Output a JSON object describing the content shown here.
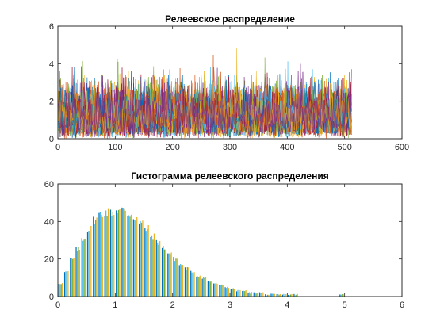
{
  "colors": [
    "#0072BD",
    "#D95319",
    "#EDB120",
    "#7E2F8E",
    "#77AC30",
    "#4DBEEE",
    "#A2142F"
  ],
  "chart_data": [
    {
      "type": "line",
      "title": "Релеевское распределение",
      "xlabel": "",
      "ylabel": "",
      "xlim": [
        0,
        600
      ],
      "ylim": [
        0,
        6
      ],
      "xticks": [
        0,
        100,
        200,
        300,
        400,
        500,
        600
      ],
      "yticks": [
        0,
        2,
        4,
        6
      ],
      "grid": false,
      "n_samples": 512,
      "n_series": 32,
      "distribution": "rayleigh",
      "sigma": 1
    },
    {
      "type": "bar",
      "title": "Гистограмма релеевского распределения",
      "xlabel": "",
      "ylabel": "",
      "xlim": [
        0,
        6
      ],
      "ylim": [
        0,
        60
      ],
      "xticks": [
        0,
        1,
        2,
        3,
        4,
        5,
        6
      ],
      "yticks": [
        0,
        20,
        40,
        60
      ],
      "grid": false,
      "bin_centers": [
        0.05,
        0.15,
        0.25,
        0.35,
        0.45,
        0.55,
        0.65,
        0.75,
        0.85,
        0.95,
        1.05,
        1.15,
        1.25,
        1.35,
        1.45,
        1.55,
        1.65,
        1.75,
        1.85,
        1.95,
        2.05,
        2.15,
        2.25,
        2.35,
        2.45,
        2.55,
        2.65,
        2.75,
        2.85,
        2.95,
        3.05,
        3.15,
        3.25,
        3.35,
        3.45,
        3.55,
        3.65,
        3.75,
        3.85,
        3.95,
        4.05,
        4.15,
        4.25,
        4.35,
        4.45,
        4.55,
        4.65,
        4.75,
        4.85,
        4.95
      ],
      "counts": [
        7,
        13,
        20,
        25,
        31,
        36,
        41,
        44,
        45,
        45,
        46,
        46,
        44,
        42,
        39,
        36,
        32,
        29,
        26,
        23,
        20,
        17,
        15,
        13,
        11,
        10,
        8,
        7,
        6,
        5,
        4,
        3,
        3,
        2,
        2,
        2,
        1,
        1,
        1,
        1,
        1,
        1,
        0,
        0,
        0,
        0,
        0,
        0,
        0,
        1
      ]
    }
  ]
}
